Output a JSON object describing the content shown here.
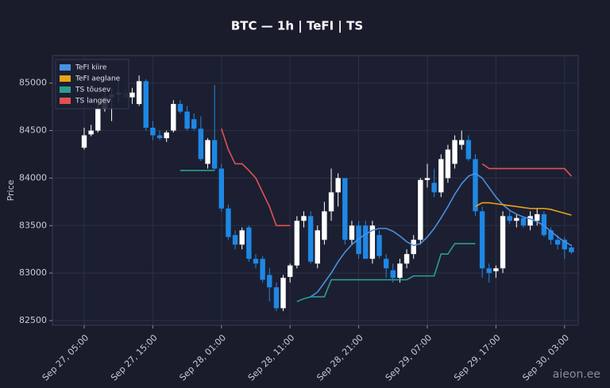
{
  "chart_data": {
    "type": "candlestick",
    "title": "BTC — 1h  |  TeFI  |  TS",
    "ylabel": "Price",
    "watermark": "aieon.ee",
    "categories": [
      "Sep 27, 05:00",
      "Sep 27, 06:00",
      "Sep 27, 07:00",
      "Sep 27, 08:00",
      "Sep 27, 09:00",
      "Sep 27, 10:00",
      "Sep 27, 11:00",
      "Sep 27, 12:00",
      "Sep 27, 13:00",
      "Sep 27, 14:00",
      "Sep 27, 15:00",
      "Sep 27, 16:00",
      "Sep 27, 17:00",
      "Sep 27, 18:00",
      "Sep 27, 19:00",
      "Sep 27, 20:00",
      "Sep 27, 21:00",
      "Sep 27, 22:00",
      "Sep 27, 23:00",
      "Sep 28, 00:00",
      "Sep 28, 01:00",
      "Sep 28, 02:00",
      "Sep 28, 03:00",
      "Sep 28, 04:00",
      "Sep 28, 05:00",
      "Sep 28, 06:00",
      "Sep 28, 07:00",
      "Sep 28, 08:00",
      "Sep 28, 09:00",
      "Sep 28, 10:00",
      "Sep 28, 11:00",
      "Sep 28, 12:00",
      "Sep 28, 13:00",
      "Sep 28, 14:00",
      "Sep 28, 15:00",
      "Sep 28, 16:00",
      "Sep 28, 17:00",
      "Sep 28, 18:00",
      "Sep 28, 19:00",
      "Sep 28, 20:00",
      "Sep 28, 21:00",
      "Sep 28, 22:00",
      "Sep 28, 23:00",
      "Sep 29, 00:00",
      "Sep 29, 01:00",
      "Sep 29, 02:00",
      "Sep 29, 03:00",
      "Sep 29, 04:00",
      "Sep 29, 05:00",
      "Sep 29, 06:00",
      "Sep 29, 07:00",
      "Sep 29, 08:00",
      "Sep 29, 09:00",
      "Sep 29, 10:00",
      "Sep 29, 11:00",
      "Sep 29, 12:00",
      "Sep 29, 13:00",
      "Sep 29, 14:00",
      "Sep 29, 15:00",
      "Sep 29, 16:00",
      "Sep 29, 17:00",
      "Sep 29, 18:00",
      "Sep 29, 19:00",
      "Sep 29, 20:00",
      "Sep 29, 21:00",
      "Sep 29, 22:00",
      "Sep 29, 23:00",
      "Sep 30, 00:00",
      "Sep 30, 01:00",
      "Sep 30, 02:00",
      "Sep 30, 03:00",
      "Sep 30, 04:00"
    ],
    "xticks": [
      "Sep 27, 05:00",
      "Sep 27, 15:00",
      "Sep 28, 01:00",
      "Sep 28, 11:00",
      "Sep 28, 21:00",
      "Sep 29, 07:00",
      "Sep 29, 17:00",
      "Sep 30, 03:00"
    ],
    "open": [
      84320,
      84460,
      84500,
      84730,
      84850,
      84880,
      84900,
      84850,
      84780,
      85020,
      84530,
      84450,
      84420,
      84500,
      84780,
      84700,
      84620,
      84520,
      84150,
      84400,
      84100,
      83680,
      83400,
      83300,
      83480,
      83150,
      83150,
      82980,
      82850,
      82630,
      82960,
      83080,
      83550,
      83600,
      83100,
      83350,
      83650,
      83850,
      84000,
      83350,
      83500,
      83500,
      83150,
      83400,
      83150,
      83030,
      82950,
      83100,
      83200,
      83350,
      83980,
      83950,
      83850,
      84000,
      84150,
      84350,
      84400,
      84200,
      83650,
      83050,
      83020,
      83050,
      83600,
      83550,
      83580,
      83500,
      83550,
      83620,
      83450,
      83350,
      83350,
      83270
    ],
    "high": [
      84530,
      84560,
      84800,
      84900,
      84950,
      85050,
      84950,
      84950,
      85080,
      85040,
      84600,
      84500,
      84500,
      84820,
      84820,
      84760,
      84680,
      84650,
      84420,
      84980,
      84150,
      83720,
      83450,
      83480,
      83500,
      83200,
      83180,
      83050,
      82900,
      82980,
      83100,
      83600,
      83650,
      83650,
      83500,
      83750,
      84100,
      84050,
      84000,
      83550,
      83550,
      83550,
      83550,
      83450,
      83200,
      83100,
      83150,
      83250,
      83400,
      84000,
      84150,
      84100,
      84250,
      84350,
      84450,
      84500,
      84450,
      84250,
      83700,
      83100,
      83080,
      83650,
      83650,
      83620,
      83600,
      83650,
      83680,
      83650,
      83480,
      83400,
      83380,
      83300
    ],
    "low": [
      84300,
      84440,
      84480,
      84700,
      84600,
      84800,
      84820,
      84780,
      84760,
      84500,
      84400,
      84400,
      84380,
      84480,
      84680,
      84500,
      84500,
      84180,
      84100,
      84080,
      83650,
      83350,
      83250,
      83250,
      83120,
      83050,
      82900,
      82700,
      82600,
      82600,
      82900,
      83050,
      83480,
      83100,
      83050,
      83300,
      83550,
      83700,
      83300,
      83300,
      83150,
      83150,
      83100,
      83150,
      82950,
      82900,
      82900,
      83050,
      83150,
      83300,
      83900,
      83800,
      83800,
      83950,
      84100,
      84300,
      84180,
      83600,
      82950,
      82900,
      82950,
      83000,
      83520,
      83480,
      83480,
      83450,
      83500,
      83380,
      83300,
      83250,
      83150,
      83200
    ],
    "close": [
      84450,
      84500,
      84730,
      84850,
      84880,
      84900,
      84850,
      84900,
      85020,
      84530,
      84450,
      84420,
      84480,
      84780,
      84700,
      84520,
      84520,
      84200,
      84400,
      84100,
      83680,
      83380,
      83300,
      83450,
      83150,
      83100,
      82930,
      82850,
      82630,
      82950,
      83080,
      83550,
      83600,
      83120,
      83450,
      83650,
      83850,
      84000,
      83350,
      83500,
      83200,
      83150,
      83500,
      83180,
      83050,
      82950,
      83100,
      83200,
      83350,
      83980,
      84000,
      83850,
      84200,
      84300,
      84400,
      84400,
      84200,
      83650,
      83050,
      83000,
      83050,
      83600,
      83550,
      83580,
      83500,
      83600,
      83620,
      83400,
      83350,
      83300,
      83250,
      83220
    ],
    "up_color": "#ffffff",
    "down_color": "#1e88e5",
    "series": [
      {
        "name": "TeFI kiire",
        "color": "#4a90e2",
        "values": [
          null,
          null,
          null,
          null,
          null,
          null,
          null,
          null,
          null,
          null,
          null,
          null,
          null,
          null,
          null,
          null,
          null,
          null,
          null,
          null,
          null,
          null,
          null,
          null,
          null,
          null,
          null,
          null,
          null,
          null,
          null,
          null,
          null,
          82750,
          82800,
          82900,
          83000,
          83120,
          83220,
          83300,
          83360,
          83410,
          83450,
          83470,
          83470,
          83440,
          83390,
          83330,
          83290,
          83310,
          83380,
          83470,
          83580,
          83700,
          83830,
          83940,
          84020,
          84050,
          84000,
          83900,
          83800,
          83720,
          83660,
          83620,
          83590,
          83570,
          83540,
          83500,
          83440,
          83380,
          83330,
          83290
        ]
      },
      {
        "name": "TeFI aeglane",
        "color": "#e8a317",
        "values": [
          null,
          null,
          null,
          null,
          null,
          null,
          null,
          null,
          null,
          null,
          null,
          null,
          null,
          null,
          null,
          null,
          null,
          null,
          null,
          null,
          null,
          null,
          null,
          null,
          null,
          null,
          null,
          null,
          null,
          null,
          null,
          null,
          null,
          null,
          null,
          null,
          null,
          null,
          null,
          null,
          null,
          null,
          null,
          null,
          null,
          null,
          null,
          null,
          null,
          null,
          null,
          null,
          null,
          null,
          null,
          null,
          null,
          83700,
          83740,
          83740,
          83730,
          83720,
          83710,
          83700,
          83690,
          83680,
          83680,
          83680,
          83670,
          83650,
          83630,
          83610
        ]
      },
      {
        "name": "TS tõusev",
        "color": "#2a9d8f",
        "values": [
          null,
          null,
          null,
          null,
          null,
          null,
          null,
          null,
          null,
          null,
          null,
          null,
          null,
          null,
          84080,
          84080,
          84080,
          84080,
          84080,
          84080,
          null,
          null,
          null,
          null,
          null,
          null,
          null,
          null,
          null,
          null,
          null,
          82700,
          82730,
          82750,
          82750,
          82750,
          82930,
          82930,
          82930,
          82930,
          82930,
          82930,
          82930,
          82930,
          82930,
          82930,
          82930,
          82930,
          82970,
          82970,
          82970,
          82970,
          83200,
          83200,
          83310,
          83310,
          83310,
          83310,
          null,
          null,
          null,
          null,
          null,
          null,
          null,
          null,
          null,
          null,
          null,
          null,
          null,
          null
        ]
      },
      {
        "name": "TS langev",
        "color": "#e05252",
        "values": [
          null,
          null,
          null,
          null,
          null,
          null,
          null,
          null,
          null,
          null,
          null,
          null,
          null,
          null,
          null,
          null,
          null,
          null,
          null,
          null,
          84520,
          84300,
          84150,
          84150,
          84080,
          84000,
          83850,
          83700,
          83500,
          83500,
          83500,
          null,
          null,
          null,
          null,
          null,
          null,
          null,
          null,
          null,
          null,
          null,
          null,
          null,
          null,
          null,
          null,
          null,
          null,
          null,
          null,
          null,
          null,
          null,
          null,
          null,
          null,
          null,
          84150,
          84100,
          84100,
          84100,
          84100,
          84100,
          84100,
          84100,
          84100,
          84100,
          84100,
          84100,
          84100,
          84020
        ]
      }
    ],
    "ylim": [
      82450,
      85290
    ],
    "yticks": [
      82500,
      83000,
      83500,
      84000,
      84500,
      85000
    ],
    "grid": true,
    "legend": "upper left"
  }
}
